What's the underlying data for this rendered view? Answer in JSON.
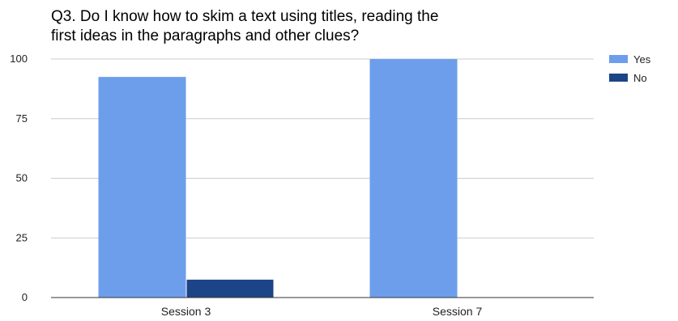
{
  "chart_data": {
    "type": "bar",
    "title_lines": [
      "Q3. Do I know how to skim a text using titles, reading the",
      "first ideas in the paragraphs and other clues?"
    ],
    "categories": [
      "Session 3",
      "Session 7"
    ],
    "series": [
      {
        "name": "Yes",
        "color": "#6d9eeb",
        "values": [
          92.5,
          100
        ]
      },
      {
        "name": "No",
        "color": "#1c4587",
        "values": [
          7.5,
          0
        ]
      }
    ],
    "yticks": [
      0,
      25,
      50,
      75,
      100
    ],
    "ylim": [
      0,
      100
    ],
    "grid": true,
    "legend_position": "right"
  }
}
